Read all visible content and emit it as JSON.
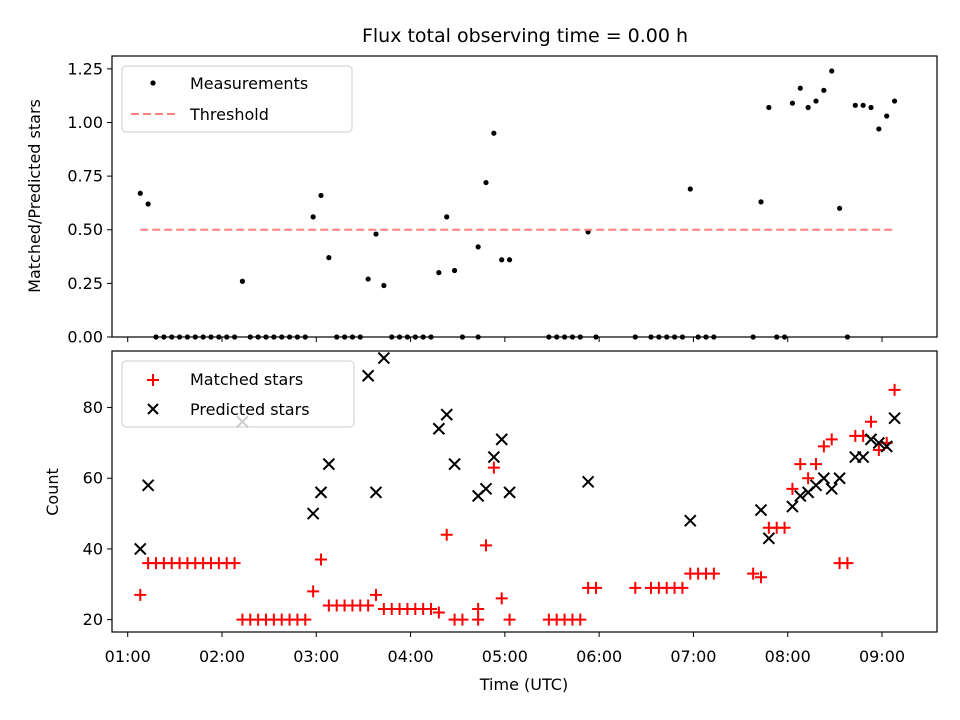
{
  "chart_data": [
    {
      "type": "scatter",
      "title": "Flux total observing time = 0.00 h",
      "xlabel": "",
      "ylabel": "Matched/Predicted stars",
      "xlim": [
        "00:50",
        "09:35"
      ],
      "ylim": [
        0,
        1.31
      ],
      "yticks": [
        "0.00",
        "0.25",
        "0.50",
        "0.75",
        "1.00",
        "1.25"
      ],
      "legend_position": "top-left",
      "series": [
        {
          "name": "Measurements",
          "marker": "dot",
          "color": "#000000",
          "points": [
            [
              "01:08",
              0.67
            ],
            [
              "01:13",
              0.62
            ],
            [
              "01:18",
              0.0
            ],
            [
              "01:23",
              0.0
            ],
            [
              "01:28",
              0.0
            ],
            [
              "01:33",
              0.0
            ],
            [
              "01:38",
              0.0
            ],
            [
              "01:43",
              0.0
            ],
            [
              "01:48",
              0.0
            ],
            [
              "01:53",
              0.0
            ],
            [
              "01:58",
              0.0
            ],
            [
              "02:03",
              0.0
            ],
            [
              "02:08",
              0.0
            ],
            [
              "02:13",
              0.26
            ],
            [
              "02:18",
              0.0
            ],
            [
              "02:23",
              0.0
            ],
            [
              "02:28",
              0.0
            ],
            [
              "02:33",
              0.0
            ],
            [
              "02:38",
              0.0
            ],
            [
              "02:43",
              0.0
            ],
            [
              "02:48",
              0.0
            ],
            [
              "02:53",
              0.0
            ],
            [
              "02:58",
              0.56
            ],
            [
              "03:03",
              0.66
            ],
            [
              "03:08",
              0.37
            ],
            [
              "03:13",
              0.0
            ],
            [
              "03:18",
              0.0
            ],
            [
              "03:23",
              0.0
            ],
            [
              "03:28",
              0.0
            ],
            [
              "03:33",
              0.27
            ],
            [
              "03:38",
              0.48
            ],
            [
              "03:43",
              0.24
            ],
            [
              "03:48",
              0.0
            ],
            [
              "03:53",
              0.0
            ],
            [
              "03:58",
              0.0
            ],
            [
              "04:03",
              0.0
            ],
            [
              "04:08",
              0.0
            ],
            [
              "04:13",
              0.0
            ],
            [
              "04:18",
              0.3
            ],
            [
              "04:23",
              0.56
            ],
            [
              "04:28",
              0.31
            ],
            [
              "04:33",
              0.0
            ],
            [
              "04:43",
              0.0
            ],
            [
              "04:43",
              0.42
            ],
            [
              "04:48",
              0.72
            ],
            [
              "04:53",
              0.95
            ],
            [
              "04:58",
              0.36
            ],
            [
              "05:03",
              0.36
            ],
            [
              "05:28",
              0.0
            ],
            [
              "05:33",
              0.0
            ],
            [
              "05:38",
              0.0
            ],
            [
              "05:43",
              0.0
            ],
            [
              "05:48",
              0.0
            ],
            [
              "05:53",
              0.49
            ],
            [
              "05:58",
              0.0
            ],
            [
              "06:23",
              0.0
            ],
            [
              "06:33",
              0.0
            ],
            [
              "06:38",
              0.0
            ],
            [
              "06:43",
              0.0
            ],
            [
              "06:48",
              0.0
            ],
            [
              "06:53",
              0.0
            ],
            [
              "06:58",
              0.69
            ],
            [
              "07:03",
              0.0
            ],
            [
              "07:08",
              0.0
            ],
            [
              "07:13",
              0.0
            ],
            [
              "07:38",
              0.0
            ],
            [
              "07:43",
              0.63
            ],
            [
              "07:48",
              1.07
            ],
            [
              "07:53",
              0.0
            ],
            [
              "07:58",
              0.0
            ],
            [
              "08:03",
              1.09
            ],
            [
              "08:08",
              1.16
            ],
            [
              "08:13",
              1.07
            ],
            [
              "08:18",
              1.1
            ],
            [
              "08:23",
              1.15
            ],
            [
              "08:28",
              1.24
            ],
            [
              "08:33",
              0.6
            ],
            [
              "08:38",
              0.0
            ],
            [
              "08:43",
              1.08
            ],
            [
              "08:48",
              1.08
            ],
            [
              "08:53",
              1.07
            ],
            [
              "08:58",
              0.97
            ],
            [
              "09:03",
              1.03
            ],
            [
              "09:08",
              1.1
            ]
          ]
        },
        {
          "name": "Threshold",
          "marker": "dashed-line",
          "color": "#ff7f7f",
          "points": [
            [
              "01:08",
              0.5
            ],
            [
              "09:08",
              0.5
            ]
          ]
        }
      ]
    },
    {
      "type": "scatter",
      "title": "",
      "xlabel": "Time (UTC)",
      "ylabel": "Count",
      "xlim": [
        "00:50",
        "09:35"
      ],
      "ylim": [
        16.5,
        96
      ],
      "yticks": [
        "20",
        "40",
        "60",
        "80"
      ],
      "xticks": [
        "01:00",
        "02:00",
        "03:00",
        "04:00",
        "05:00",
        "06:00",
        "07:00",
        "08:00",
        "09:00"
      ],
      "legend_position": "top-left",
      "series": [
        {
          "name": "Matched stars",
          "marker": "plus",
          "color": "#ff0000",
          "points": [
            [
              "01:08",
              27
            ],
            [
              "01:13",
              36
            ],
            [
              "01:18",
              36
            ],
            [
              "01:23",
              36
            ],
            [
              "01:28",
              36
            ],
            [
              "01:33",
              36
            ],
            [
              "01:38",
              36
            ],
            [
              "01:43",
              36
            ],
            [
              "01:48",
              36
            ],
            [
              "01:53",
              36
            ],
            [
              "01:58",
              36
            ],
            [
              "02:03",
              36
            ],
            [
              "02:08",
              36
            ],
            [
              "02:13",
              20
            ],
            [
              "02:18",
              20
            ],
            [
              "02:23",
              20
            ],
            [
              "02:28",
              20
            ],
            [
              "02:33",
              20
            ],
            [
              "02:38",
              20
            ],
            [
              "02:43",
              20
            ],
            [
              "02:48",
              20
            ],
            [
              "02:53",
              20
            ],
            [
              "02:58",
              28
            ],
            [
              "03:03",
              37
            ],
            [
              "03:08",
              24
            ],
            [
              "03:13",
              24
            ],
            [
              "03:18",
              24
            ],
            [
              "03:23",
              24
            ],
            [
              "03:28",
              24
            ],
            [
              "03:33",
              24
            ],
            [
              "03:38",
              27
            ],
            [
              "03:43",
              23
            ],
            [
              "03:48",
              23
            ],
            [
              "03:53",
              23
            ],
            [
              "03:58",
              23
            ],
            [
              "04:03",
              23
            ],
            [
              "04:08",
              23
            ],
            [
              "04:13",
              23
            ],
            [
              "04:18",
              22
            ],
            [
              "04:23",
              44
            ],
            [
              "04:28",
              20
            ],
            [
              "04:33",
              20
            ],
            [
              "04:43",
              20
            ],
            [
              "04:43",
              23
            ],
            [
              "04:48",
              41
            ],
            [
              "04:53",
              63
            ],
            [
              "04:58",
              26
            ],
            [
              "05:03",
              20
            ],
            [
              "05:28",
              20
            ],
            [
              "05:33",
              20
            ],
            [
              "05:38",
              20
            ],
            [
              "05:43",
              20
            ],
            [
              "05:48",
              20
            ],
            [
              "05:53",
              29
            ],
            [
              "05:58",
              29
            ],
            [
              "06:23",
              29
            ],
            [
              "06:33",
              29
            ],
            [
              "06:38",
              29
            ],
            [
              "06:43",
              29
            ],
            [
              "06:48",
              29
            ],
            [
              "06:53",
              29
            ],
            [
              "06:58",
              33
            ],
            [
              "07:03",
              33
            ],
            [
              "07:08",
              33
            ],
            [
              "07:13",
              33
            ],
            [
              "07:38",
              33
            ],
            [
              "07:43",
              32
            ],
            [
              "07:48",
              46
            ],
            [
              "07:53",
              46
            ],
            [
              "07:58",
              46
            ],
            [
              "08:03",
              57
            ],
            [
              "08:08",
              64
            ],
            [
              "08:13",
              60
            ],
            [
              "08:18",
              64
            ],
            [
              "08:23",
              69
            ],
            [
              "08:28",
              71
            ],
            [
              "08:33",
              36
            ],
            [
              "08:38",
              36
            ],
            [
              "08:43",
              72
            ],
            [
              "08:48",
              72
            ],
            [
              "08:53",
              76
            ],
            [
              "08:58",
              68
            ],
            [
              "09:03",
              70
            ],
            [
              "09:08",
              85
            ]
          ]
        },
        {
          "name": "Predicted stars",
          "marker": "x",
          "color": "#000000",
          "points": [
            [
              "01:08",
              40
            ],
            [
              "01:13",
              58
            ],
            [
              "02:13",
              76
            ],
            [
              "02:58",
              50
            ],
            [
              "03:03",
              56
            ],
            [
              "03:08",
              64
            ],
            [
              "03:33",
              89
            ],
            [
              "03:38",
              56
            ],
            [
              "03:43",
              94
            ],
            [
              "04:18",
              74
            ],
            [
              "04:23",
              78
            ],
            [
              "04:28",
              64
            ],
            [
              "04:43",
              55
            ],
            [
              "04:48",
              57
            ],
            [
              "04:53",
              66
            ],
            [
              "04:58",
              71
            ],
            [
              "05:03",
              56
            ],
            [
              "05:53",
              59
            ],
            [
              "06:58",
              48
            ],
            [
              "07:43",
              51
            ],
            [
              "07:48",
              43
            ],
            [
              "08:03",
              52
            ],
            [
              "08:08",
              55
            ],
            [
              "08:13",
              56
            ],
            [
              "08:18",
              58
            ],
            [
              "08:23",
              60
            ],
            [
              "08:28",
              57
            ],
            [
              "08:33",
              60
            ],
            [
              "08:43",
              66
            ],
            [
              "08:48",
              66
            ],
            [
              "08:53",
              71
            ],
            [
              "08:58",
              70
            ],
            [
              "09:03",
              69
            ],
            [
              "09:08",
              77
            ]
          ]
        }
      ]
    }
  ]
}
